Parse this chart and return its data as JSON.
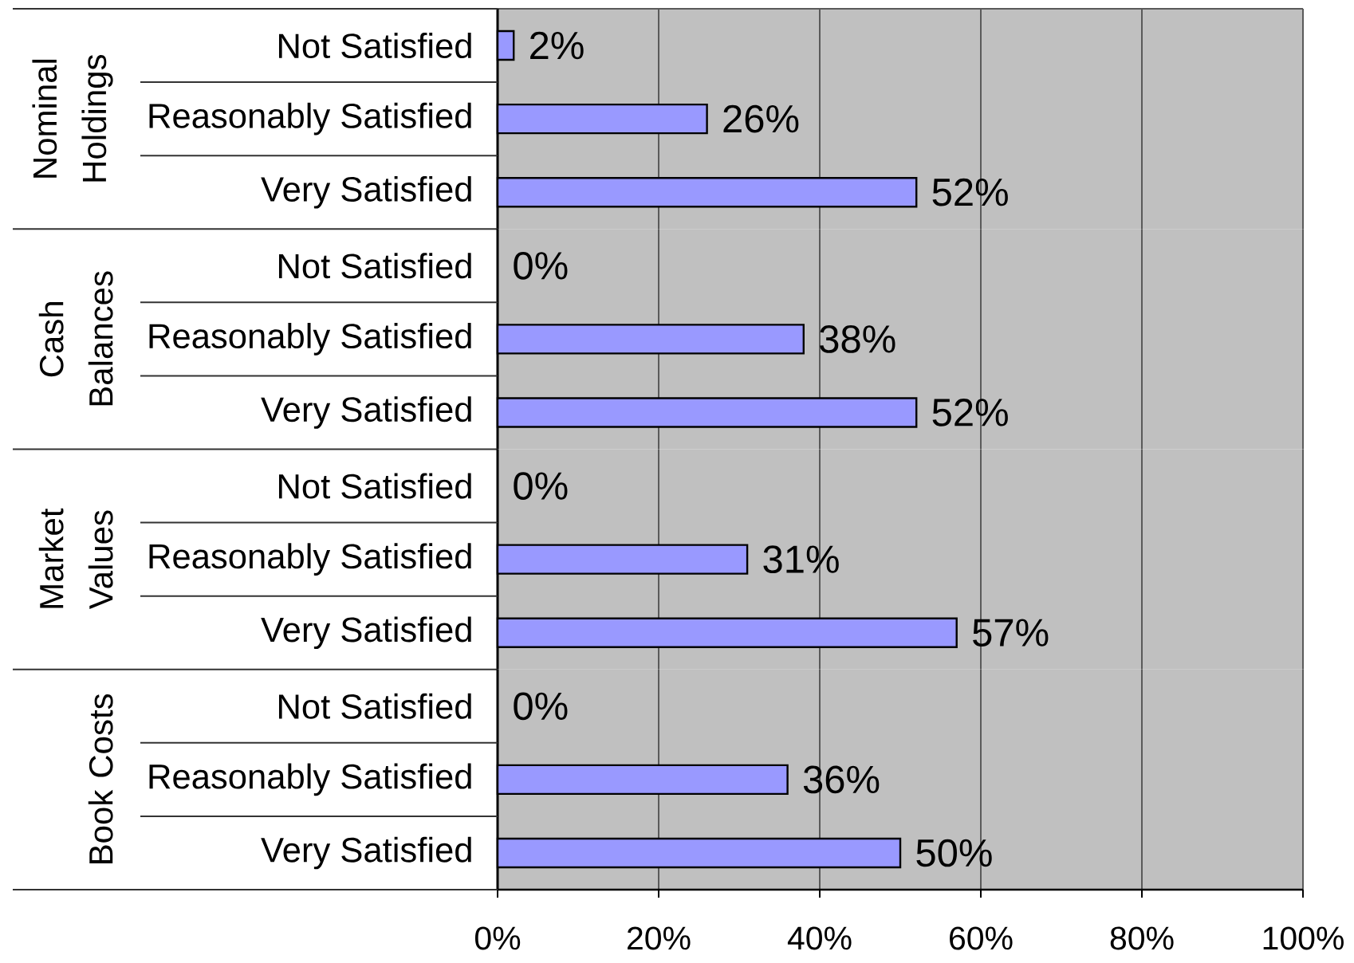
{
  "chart_data": [
    {
      "type": "bar",
      "orientation": "horizontal",
      "title": "Nominal Holdings",
      "categories": [
        "Not Satisfied",
        "Reasonably Satisfied",
        "Very Satisfied"
      ],
      "values": [
        2,
        26,
        52
      ],
      "value_labels": [
        "2%",
        "26%",
        "52%"
      ],
      "color": "#9999ff",
      "xlim": [
        0,
        100
      ],
      "xticks": [
        {
          "value": 0,
          "label": null
        },
        {
          "value": 20,
          "label": null
        },
        {
          "value": 40,
          "label": null
        },
        {
          "value": 60,
          "label": null
        },
        {
          "value": 80,
          "label": null
        },
        {
          "value": 100,
          "label": null
        }
      ],
      "grid": "x",
      "tick_labels": "y"
    },
    {
      "type": "bar",
      "orientation": "horizontal",
      "title": "Cash Balances",
      "categories": [
        "Not Satisfied",
        "Reasonably Satisfied",
        "Very Satisfied"
      ],
      "values": [
        0,
        38,
        52
      ],
      "value_labels": [
        "0%",
        "38%",
        "52%"
      ],
      "color": "#9999ff",
      "xlim": [
        0,
        100
      ],
      "xticks": [
        {
          "value": 0,
          "label": null
        },
        {
          "value": 20,
          "label": null
        },
        {
          "value": 40,
          "label": null
        },
        {
          "value": 60,
          "label": null
        },
        {
          "value": 80,
          "label": null
        },
        {
          "value": 100,
          "label": null
        }
      ],
      "grid": "x",
      "tick_labels": "y"
    },
    {
      "type": "bar",
      "orientation": "horizontal",
      "title": "Market Values",
      "categories": [
        "Not Satisfied",
        "Reasonably Satisfied",
        "Very Satisfied"
      ],
      "values": [
        0,
        31,
        57
      ],
      "value_labels": [
        "0%",
        "31%",
        "57%"
      ],
      "color": "#9999ff",
      "xlim": [
        0,
        100
      ],
      "xticks": [
        {
          "value": 0,
          "label": null
        },
        {
          "value": 20,
          "label": null
        },
        {
          "value": 40,
          "label": null
        },
        {
          "value": 60,
          "label": null
        },
        {
          "value": 80,
          "label": null
        },
        {
          "value": 100,
          "label": null
        }
      ],
      "grid": "x",
      "tick_labels": "y"
    },
    {
      "type": "bar",
      "orientation": "horizontal",
      "title": "Book Costs",
      "categories": [
        "Not Satisfied",
        "Reasonably Satisfied",
        "Very Satisfied"
      ],
      "values": [
        0,
        36,
        50
      ],
      "value_labels": [
        "0%",
        "36%",
        "50%"
      ],
      "color": "#9999ff",
      "xlim": [
        0,
        100
      ],
      "xticks": [
        {
          "value": 0,
          "label": "0%"
        },
        {
          "value": 20,
          "label": "20%"
        },
        {
          "value": 40,
          "label": "40%"
        },
        {
          "value": 60,
          "label": "60%"
        },
        {
          "value": 80,
          "label": "80%"
        },
        {
          "value": 100,
          "label": "100%"
        }
      ],
      "grid": "x"
    }
  ]
}
